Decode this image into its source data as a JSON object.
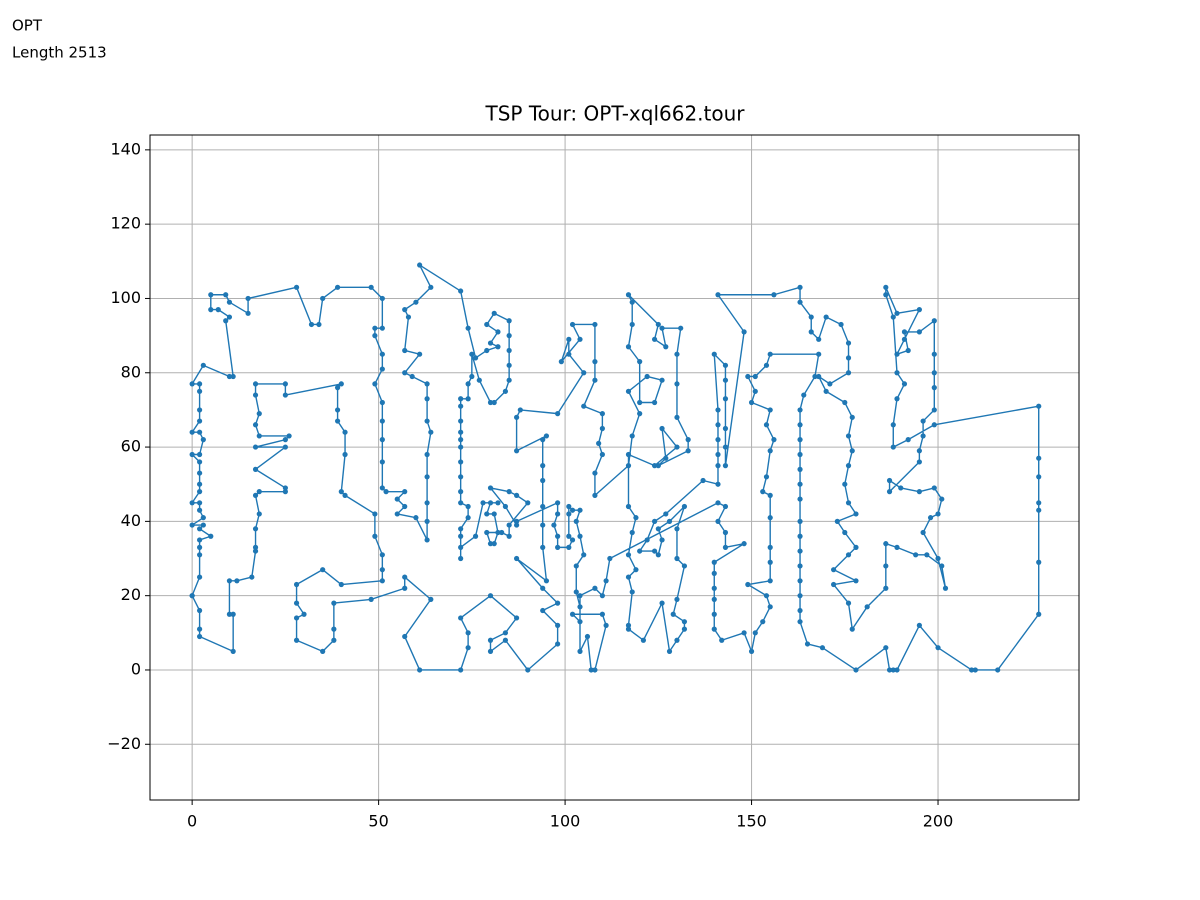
{
  "header": {
    "label": "OPT",
    "length": "Length 2513"
  },
  "chart_data": {
    "type": "line",
    "title": "TSP Tour: OPT-xql662.tour",
    "color": "#1f77b4",
    "grid": true,
    "markers": true,
    "xlim": [
      -11.3,
      237.8
    ],
    "ylim": [
      -35,
      144
    ],
    "xticks": [
      0,
      50,
      100,
      150,
      200
    ],
    "yticks": [
      {
        "value": -20,
        "label": "−20"
      },
      0,
      20,
      40,
      60,
      80,
      100,
      120,
      140
    ],
    "x": [
      0,
      2,
      2,
      2,
      11,
      11,
      10,
      10,
      12,
      16,
      17,
      17,
      17,
      18,
      17,
      18,
      25,
      25,
      17,
      25,
      17,
      25,
      26,
      18,
      17,
      18,
      17,
      17,
      25,
      25,
      40,
      39,
      39,
      39,
      41,
      41,
      40,
      41,
      49,
      49,
      51,
      51,
      51,
      40,
      35,
      28,
      28,
      30,
      28,
      28,
      35,
      38,
      38,
      38,
      48,
      57,
      57,
      64,
      57,
      61,
      72,
      74,
      74,
      72,
      80,
      87,
      84,
      80,
      80,
      84,
      90,
      98,
      98,
      94,
      98,
      94,
      87,
      95,
      94,
      94,
      94,
      94,
      94,
      94,
      95,
      87,
      87,
      88,
      98,
      105,
      101,
      101,
      99,
      104,
      102,
      108,
      108,
      108,
      105,
      110,
      110,
      109,
      110,
      108,
      108,
      117,
      118,
      120,
      117,
      122,
      126,
      124,
      120,
      120,
      117,
      118,
      118,
      117,
      125,
      124,
      127,
      126,
      131,
      130,
      130,
      130,
      133,
      133,
      125,
      127,
      126,
      130,
      124,
      117,
      117,
      119,
      118,
      117,
      119,
      117,
      118,
      117,
      117,
      121,
      126,
      128,
      130,
      132,
      132,
      129,
      130,
      132,
      130,
      130,
      132,
      128,
      125,
      126,
      125,
      124,
      120,
      122,
      124,
      127,
      137,
      141,
      141,
      141,
      141,
      141,
      141,
      140,
      143,
      143,
      143,
      143,
      143,
      143,
      148,
      141,
      156,
      163,
      163,
      166,
      166,
      168,
      170,
      174,
      176,
      176,
      176,
      171,
      168,
      170,
      175,
      177,
      176,
      177,
      176,
      175,
      176,
      178,
      173,
      175,
      178,
      176,
      172,
      178,
      172,
      176,
      177,
      181,
      186,
      186,
      186,
      189,
      194,
      197,
      201,
      202,
      200,
      196,
      198,
      200,
      201,
      199,
      195,
      190,
      187,
      187,
      195,
      195,
      196,
      196,
      199,
      199,
      199,
      199,
      199,
      195,
      191,
      192,
      189,
      191,
      195,
      189,
      186,
      186,
      188,
      189,
      191,
      189,
      188,
      188,
      192,
      199,
      227,
      227,
      227,
      227,
      227,
      227,
      227,
      216,
      210,
      209,
      200,
      195,
      189,
      188,
      187,
      186,
      178,
      169,
      165,
      163,
      163,
      163,
      163,
      163,
      163,
      163,
      163,
      163,
      163,
      163,
      163,
      163,
      163,
      163,
      164,
      167,
      168,
      155,
      154,
      151,
      149,
      151,
      150,
      155,
      154,
      156,
      155,
      154,
      153,
      155,
      155,
      155,
      155,
      155,
      149,
      154,
      155,
      153,
      151,
      150,
      148,
      142,
      140,
      140,
      140,
      140,
      140,
      140,
      148,
      143,
      143,
      141,
      143,
      141,
      112,
      111,
      110,
      108,
      104,
      104,
      106,
      107,
      108,
      111,
      110,
      102,
      104,
      104,
      103,
      103,
      105,
      104,
      103,
      104,
      102,
      101,
      101,
      101,
      102,
      101,
      98,
      98,
      97,
      98,
      98,
      87,
      87,
      84,
      80,
      85,
      87,
      90,
      85,
      85,
      83,
      79,
      80,
      81,
      82,
      81,
      79,
      80,
      82,
      78,
      76,
      72,
      72,
      72,
      72,
      74,
      74,
      72,
      72,
      72,
      72,
      72,
      72,
      72,
      72,
      72,
      72,
      74,
      74,
      75,
      75,
      77,
      80,
      81,
      84,
      85,
      85,
      85,
      85,
      85,
      81,
      79,
      82,
      80,
      82,
      79,
      76,
      74,
      72,
      61,
      64,
      60,
      57,
      58,
      57,
      61,
      57,
      59,
      63,
      63,
      63,
      64,
      63,
      63,
      63,
      63,
      63,
      60,
      55,
      57,
      55,
      57,
      52,
      51,
      51,
      51,
      51,
      51,
      49,
      51,
      51,
      49,
      49,
      51,
      51,
      48,
      39,
      35,
      34,
      32,
      28,
      15,
      15,
      10,
      9,
      5,
      5,
      7,
      10,
      9,
      11,
      10,
      3,
      0,
      2,
      2,
      2,
      2,
      0,
      2,
      3,
      2,
      0,
      2,
      2,
      2,
      2,
      0,
      2,
      2,
      3,
      0,
      3,
      2,
      5,
      2,
      2,
      2,
      2,
      0
    ],
    "values": [
      20,
      16,
      11,
      9,
      5,
      15,
      15,
      24,
      24,
      25,
      32,
      33,
      38,
      42,
      47,
      48,
      48,
      49,
      54,
      60,
      60,
      62,
      63,
      63,
      66,
      69,
      74,
      77,
      77,
      74,
      77,
      76,
      70,
      67,
      64,
      58,
      48,
      47,
      42,
      36,
      31,
      27,
      24,
      23,
      27,
      23,
      18,
      15,
      14,
      8,
      5,
      8,
      11,
      18,
      19,
      22,
      25,
      19,
      9,
      0,
      0,
      6,
      10,
      14,
      20,
      14,
      10,
      8,
      5,
      8,
      0,
      7,
      12,
      16,
      18,
      22,
      30,
      24,
      33,
      39,
      44,
      51,
      55,
      62,
      63,
      59,
      68,
      70,
      69,
      80,
      85,
      89,
      83,
      89,
      93,
      93,
      83,
      78,
      71,
      69,
      65,
      61,
      58,
      53,
      47,
      55,
      63,
      69,
      75,
      79,
      78,
      72,
      72,
      83,
      87,
      93,
      99,
      101,
      93,
      89,
      87,
      92,
      92,
      85,
      77,
      68,
      62,
      59,
      55,
      57,
      65,
      60,
      55,
      58,
      44,
      41,
      37,
      31,
      27,
      25,
      21,
      12,
      11,
      8,
      18,
      5,
      8,
      11,
      13,
      15,
      19,
      28,
      30,
      38,
      44,
      40,
      38,
      35,
      31,
      32,
      32,
      35,
      40,
      42,
      51,
      50,
      55,
      58,
      62,
      66,
      70,
      85,
      82,
      78,
      73,
      65,
      60,
      55,
      91,
      101,
      101,
      103,
      99,
      95,
      91,
      89,
      95,
      93,
      88,
      84,
      80,
      77,
      79,
      75,
      72,
      68,
      63,
      59,
      55,
      50,
      45,
      42,
      40,
      37,
      33,
      31,
      27,
      24,
      23,
      18,
      11,
      17,
      22,
      28,
      34,
      33,
      31,
      31,
      28,
      22,
      30,
      37,
      41,
      42,
      46,
      49,
      48,
      49,
      51,
      48,
      56,
      59,
      63,
      67,
      70,
      76,
      80,
      85,
      94,
      91,
      91,
      86,
      85,
      89,
      97,
      96,
      103,
      101,
      95,
      80,
      77,
      73,
      66,
      60,
      62,
      66,
      71,
      57,
      52,
      45,
      43,
      29,
      15,
      0,
      0,
      0,
      6,
      12,
      0,
      0,
      0,
      6,
      0,
      6,
      7,
      13,
      16,
      20,
      24,
      28,
      32,
      36,
      40,
      46,
      50,
      54,
      58,
      62,
      66,
      70,
      74,
      79,
      85,
      85,
      82,
      79,
      79,
      75,
      72,
      70,
      66,
      62,
      59,
      52,
      48,
      47,
      41,
      33,
      29,
      24,
      23,
      20,
      17,
      13,
      10,
      5,
      10,
      8,
      11,
      15,
      19,
      22,
      26,
      29,
      34,
      33,
      37,
      40,
      44,
      45,
      30,
      24,
      20,
      22,
      20,
      5,
      9,
      0,
      0,
      12,
      15,
      15,
      13,
      17,
      21,
      28,
      31,
      36,
      40,
      43,
      43,
      44,
      42,
      36,
      35,
      33,
      33,
      36,
      39,
      42,
      45,
      40,
      39,
      44,
      49,
      48,
      47,
      45,
      39,
      36,
      37,
      37,
      34,
      34,
      37,
      42,
      42,
      45,
      45,
      45,
      36,
      33,
      30,
      36,
      38,
      41,
      44,
      45,
      48,
      52,
      56,
      60,
      62,
      64,
      67,
      71,
      73,
      73,
      77,
      79,
      85,
      78,
      72,
      72,
      75,
      78,
      82,
      86,
      90,
      94,
      96,
      93,
      91,
      88,
      87,
      86,
      84,
      92,
      102,
      109,
      103,
      99,
      97,
      95,
      86,
      85,
      80,
      79,
      77,
      73,
      67,
      64,
      58,
      52,
      45,
      40,
      35,
      41,
      42,
      44,
      46,
      48,
      48,
      49,
      56,
      62,
      67,
      72,
      77,
      81,
      85,
      90,
      92,
      92,
      100,
      103,
      103,
      100,
      93,
      93,
      103,
      100,
      96,
      99,
      101,
      101,
      97,
      97,
      95,
      94,
      79,
      79,
      82,
      77,
      77,
      75,
      70,
      67,
      64,
      64,
      62,
      58,
      58,
      56,
      53,
      50,
      48,
      45,
      45,
      43,
      41,
      39,
      39,
      38,
      36,
      35,
      33,
      31,
      25,
      20
    ]
  }
}
